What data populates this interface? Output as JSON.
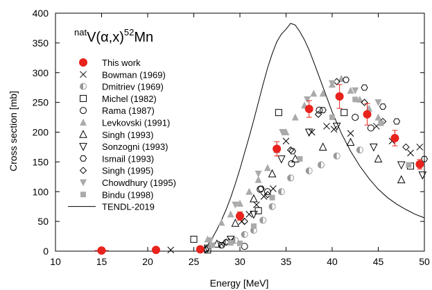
{
  "chart_data": {
    "type": "scatter",
    "title": "",
    "reaction": {
      "pre": "nat",
      "main": "V(α,x)",
      "sup": "52",
      "post": "Mn"
    },
    "xlabel": "Energy [MeV]",
    "ylabel": "Cross section [mb]",
    "xlim": [
      10,
      50
    ],
    "ylim": [
      0,
      400
    ],
    "xticks": [
      10,
      15,
      20,
      25,
      30,
      35,
      40,
      45,
      50
    ],
    "yticks": [
      0,
      50,
      100,
      150,
      200,
      250,
      300,
      350,
      400
    ],
    "grid": false,
    "legend_position": "left",
    "series": [
      {
        "name": "This work",
        "marker": "filled-circle",
        "color": "#e8221c",
        "x": [
          15.0,
          20.9,
          25.7,
          30.0,
          34.0,
          37.5,
          40.8,
          43.8,
          46.8,
          49.5
        ],
        "y": [
          1,
          2,
          3,
          59,
          172,
          239,
          260,
          230,
          190,
          146
        ],
        "yerr": [
          2,
          2,
          3,
          7,
          12,
          14,
          20,
          18,
          13,
          8
        ]
      },
      {
        "name": "Bowman (1969)",
        "marker": "x",
        "x": [
          22.5,
          28.0,
          29.0,
          30.2,
          31.0,
          31.8,
          32.6,
          33.6,
          35.0,
          37.8,
          39.4,
          40.2,
          42.0,
          44.8,
          46.5,
          48.5,
          49.5
        ],
        "y": [
          2,
          12,
          18,
          50,
          62,
          78,
          92,
          105,
          185,
          200,
          210,
          205,
          198,
          210,
          185,
          165,
          175
        ]
      },
      {
        "name": "Dmitriev (1969)",
        "marker": "half-circle",
        "x": [
          28.5,
          29.5,
          30.5,
          31.5,
          32.5,
          33.5,
          34.5,
          35.5,
          37.5,
          38.8,
          40.5,
          43.0
        ],
        "y": [
          15,
          18,
          28,
          35,
          52,
          75,
          100,
          123,
          135,
          145,
          160,
          170
        ]
      },
      {
        "name": "Michel (1982)",
        "marker": "open-square",
        "x": [
          25.0,
          26.5,
          32.0,
          34.2,
          41.3,
          48.5
        ],
        "y": [
          20,
          2,
          68,
          233,
          233,
          143
        ]
      },
      {
        "name": "Rama (1987)",
        "marker": "open-circle",
        "x": [
          30.5,
          32.2,
          33.0,
          35.6,
          38.6,
          42.5,
          44.2
        ],
        "y": [
          8,
          104,
          100,
          147,
          237,
          225,
          207
        ]
      },
      {
        "name": "Levkovski (1991)",
        "marker": "filled-triangle",
        "x": [
          26.5,
          28.0,
          29.0,
          30.0,
          31.0,
          32.0,
          33.0,
          34.0,
          35.0,
          36.0,
          37.0,
          38.0,
          39.0,
          40.0,
          41.0,
          42.0,
          43.0,
          44.0,
          45.0
        ],
        "y": [
          20,
          48,
          62,
          80,
          100,
          120,
          140,
          170,
          200,
          225,
          245,
          265,
          265,
          280,
          290,
          270,
          255,
          240,
          225
        ]
      },
      {
        "name": "Singh (1993)",
        "marker": "open-triangle",
        "x": [
          27.5,
          29.5,
          31.5,
          33.5,
          36.0,
          39.0,
          42.0,
          45.0,
          47.5
        ],
        "y": [
          12,
          47,
          88,
          130,
          155,
          175,
          183,
          155,
          120
        ]
      },
      {
        "name": "Sonzogni (1993)",
        "marker": "open-triangle-down",
        "x": [
          26.5,
          29.0,
          31.5,
          34.5,
          37.5,
          40.5,
          44.5,
          47.5,
          49.8
        ],
        "y": [
          5,
          20,
          62,
          155,
          200,
          210,
          175,
          145,
          128
        ]
      },
      {
        "name": "Ismail (1993)",
        "marker": "open-hexagon",
        "x": [
          28.0,
          32.3,
          35.7,
          39.0,
          41.5,
          43.5,
          45.5,
          47.0,
          50.0
        ],
        "y": [
          10,
          105,
          168,
          237,
          288,
          275,
          243,
          218,
          155
        ]
      },
      {
        "name": "Singh (1995)",
        "marker": "open-diamond",
        "x": [
          26.3,
          28.5,
          30.5,
          33.0,
          35.5,
          38.5,
          40.5,
          43.5,
          45.5,
          48.0
        ],
        "y": [
          3,
          15,
          50,
          95,
          170,
          230,
          285,
          250,
          218,
          175
        ]
      },
      {
        "name": "Chowdhury (1995)",
        "marker": "filled-triangle-down",
        "x": [
          26.8,
          29.5,
          32.0,
          34.6,
          37.3,
          40.0,
          42.5,
          45.0
        ],
        "y": [
          18,
          78,
          130,
          200,
          255,
          282,
          270,
          250
        ]
      },
      {
        "name": "Bindu (1998)",
        "marker": "filled-square",
        "x": [
          27.0,
          29.0,
          30.0,
          31.5,
          33.5,
          36.5,
          40.0,
          42.5,
          45.3,
          48.3
        ],
        "y": [
          10,
          14,
          13,
          42,
          90,
          155,
          225,
          255,
          215,
          145
        ]
      },
      {
        "name": "TENDL-2019",
        "marker": "line",
        "x": [
          25.5,
          26.0,
          26.5,
          27.0,
          27.5,
          28.0,
          28.5,
          29.0,
          29.5,
          30.0,
          30.5,
          31.0,
          31.5,
          32.0,
          32.5,
          33.0,
          33.5,
          34.0,
          34.5,
          35.0,
          35.5,
          36.0,
          36.5,
          37.0,
          37.5,
          38.0,
          38.5,
          39.0,
          39.5,
          40.0,
          41.0,
          42.0,
          43.0,
          44.0,
          45.0,
          46.0,
          47.0,
          48.0,
          49.0,
          50.0
        ],
        "y": [
          0,
          3,
          10,
          22,
          36,
          52,
          70,
          90,
          113,
          138,
          165,
          192,
          220,
          250,
          280,
          308,
          332,
          352,
          365,
          373,
          383,
          380,
          369,
          355,
          338,
          318,
          297,
          276,
          255,
          234,
          198,
          168,
          143,
          122,
          104,
          90,
          79,
          70,
          62,
          56
        ]
      }
    ]
  }
}
